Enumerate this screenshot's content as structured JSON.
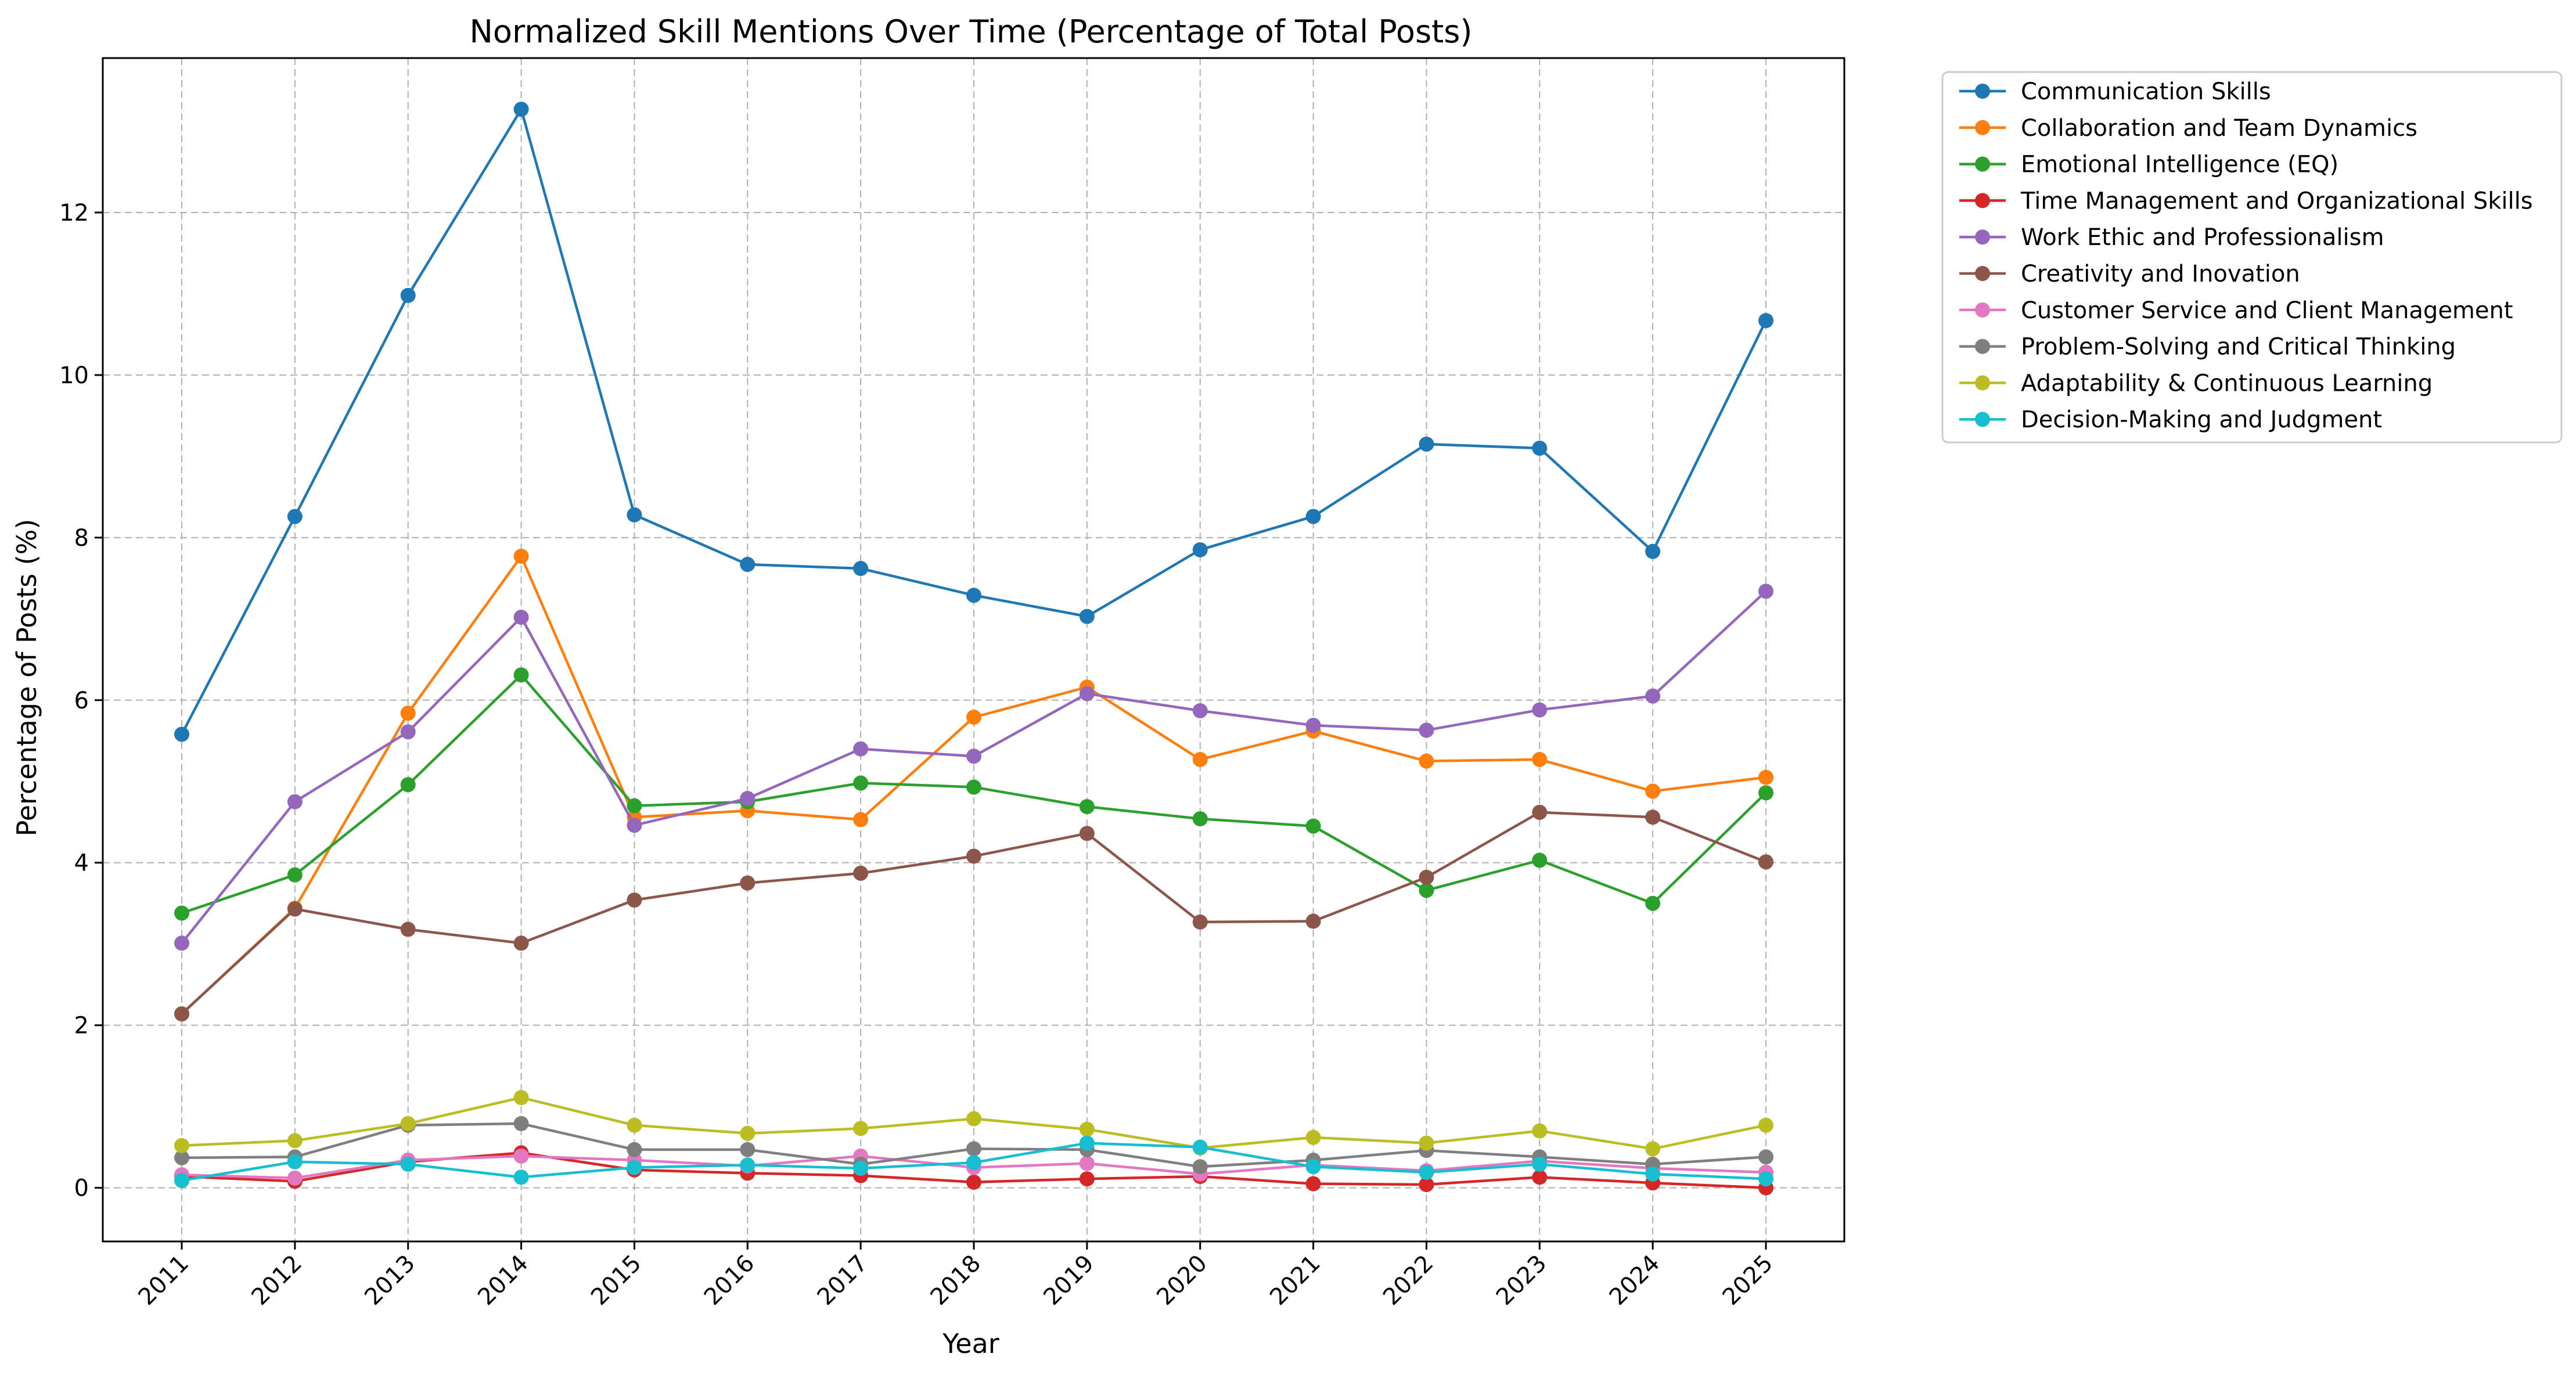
{
  "chart_data": {
    "type": "line",
    "title": "Normalized Skill Mentions Over Time (Percentage of Total Posts)",
    "xlabel": "Year",
    "ylabel": "Percentage of Posts (%)",
    "categories": [
      "2011",
      "2012",
      "2013",
      "2014",
      "2015",
      "2016",
      "2017",
      "2018",
      "2019",
      "2020",
      "2021",
      "2022",
      "2023",
      "2024",
      "2025"
    ],
    "ylim": [
      -0.66,
      13.9
    ],
    "yticks": [
      0,
      2,
      4,
      6,
      8,
      10,
      12
    ],
    "grid": true,
    "legend_position": "outside-top-right",
    "series": [
      {
        "name": "Communication Skills",
        "color": "#1f77b4",
        "values": [
          5.58,
          8.26,
          10.98,
          13.27,
          8.28,
          7.67,
          7.62,
          7.29,
          7.03,
          7.85,
          8.26,
          9.15,
          9.1,
          7.83,
          10.67
        ]
      },
      {
        "name": "Collaboration and Team Dynamics",
        "color": "#ff7f0e",
        "values": [
          2.14,
          3.44,
          5.84,
          7.77,
          4.56,
          4.64,
          4.53,
          5.79,
          6.16,
          5.27,
          5.62,
          5.25,
          5.27,
          4.88,
          5.05
        ]
      },
      {
        "name": "Emotional Intelligence (EQ)",
        "color": "#2ca02c",
        "values": [
          3.38,
          3.85,
          4.96,
          6.31,
          4.7,
          4.75,
          4.98,
          4.93,
          4.69,
          4.54,
          4.45,
          3.66,
          4.03,
          3.5,
          4.86
        ]
      },
      {
        "name": "Time Management and Organizational Skills",
        "color": "#d62728",
        "values": [
          0.14,
          0.08,
          0.32,
          0.43,
          0.22,
          0.18,
          0.15,
          0.07,
          0.11,
          0.14,
          0.05,
          0.04,
          0.13,
          0.06,
          0.0
        ]
      },
      {
        "name": "Work Ethic and Professionalism",
        "color": "#9467bd",
        "values": [
          3.01,
          4.75,
          5.61,
          7.02,
          4.46,
          4.79,
          5.4,
          5.31,
          6.08,
          5.87,
          5.69,
          5.63,
          5.88,
          6.05,
          7.34
        ]
      },
      {
        "name": "Creativity and Inovation",
        "color": "#8c564b",
        "values": [
          2.14,
          3.43,
          3.18,
          3.01,
          3.54,
          3.75,
          3.87,
          4.08,
          4.36,
          3.27,
          3.28,
          3.82,
          4.62,
          4.56,
          4.01
        ]
      },
      {
        "name": "Customer Service and Client Management",
        "color": "#e377c2",
        "values": [
          0.16,
          0.12,
          0.34,
          0.39,
          0.34,
          0.27,
          0.39,
          0.25,
          0.3,
          0.17,
          0.28,
          0.21,
          0.33,
          0.24,
          0.19
        ]
      },
      {
        "name": "Problem-Solving and Critical Thinking",
        "color": "#7f7f7f",
        "values": [
          0.37,
          0.38,
          0.77,
          0.79,
          0.47,
          0.47,
          0.29,
          0.48,
          0.47,
          0.26,
          0.34,
          0.46,
          0.38,
          0.29,
          0.38
        ]
      },
      {
        "name": "Adaptability & Continuous Learning",
        "color": "#bcbd22",
        "values": [
          0.52,
          0.58,
          0.79,
          1.11,
          0.77,
          0.67,
          0.73,
          0.85,
          0.72,
          0.49,
          0.62,
          0.55,
          0.7,
          0.48,
          0.77
        ]
      },
      {
        "name": "Decision-Making and Judgment",
        "color": "#17becf",
        "values": [
          0.09,
          0.32,
          0.29,
          0.13,
          0.25,
          0.28,
          0.24,
          0.31,
          0.55,
          0.5,
          0.26,
          0.19,
          0.29,
          0.17,
          0.11
        ]
      }
    ]
  }
}
